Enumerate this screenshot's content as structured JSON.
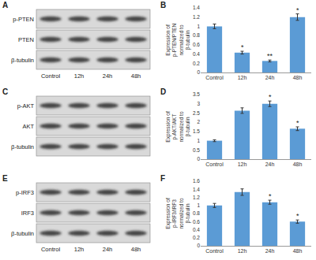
{
  "blots": [
    {
      "panel": "A",
      "rows": [
        "p-PTEN",
        "PTEN",
        "β-tubulin"
      ],
      "lanes": [
        "Control",
        "12h",
        "24h",
        "48h"
      ]
    },
    {
      "panel": "C",
      "rows": [
        "p-AKT",
        "AKT",
        "β-tubulin"
      ]
    },
    {
      "panel": "E",
      "rows": [
        "p-IRF3",
        "IRF3",
        "β-tubulin"
      ],
      "lanes": [
        "Control",
        "12h",
        "24h",
        "48h"
      ]
    }
  ],
  "chart_data": [
    {
      "panel": "B",
      "type": "bar",
      "y_label": "Expression of p-PTEN/PTEN normalized to β-tubulin",
      "categories": [
        "Control",
        "12h",
        "24h",
        "48h"
      ],
      "values": [
        1,
        0.43,
        0.25,
        1.2
      ],
      "errors": [
        0.05,
        0.03,
        0.02,
        0.07
      ],
      "significance": [
        null,
        "*",
        "**",
        "*"
      ],
      "color": "#5b9bd5",
      "ylim": [
        0,
        1.4
      ],
      "yticks": [
        0,
        0.2,
        0.4,
        0.6,
        0.8,
        1,
        1.2,
        1.4
      ],
      "grid": false
    },
    {
      "panel": "D",
      "type": "bar",
      "y_label": "Expression of p-AKT/AKT normalized to β-tubulin",
      "categories": [
        "Control",
        "12h",
        "24h",
        "48h"
      ],
      "values": [
        1,
        2.63,
        3,
        1.65
      ],
      "errors": [
        0.05,
        0.15,
        0.15,
        0.1
      ],
      "significance": [
        null,
        null,
        "*",
        "*"
      ],
      "color": "#5b9bd5",
      "ylim": [
        0,
        3.5
      ],
      "yticks": [
        0,
        0.5,
        1,
        1.5,
        2,
        2.5,
        3,
        3.5
      ],
      "grid": false
    },
    {
      "panel": "F",
      "type": "bar",
      "y_label": "Expression of p-IRF3/IRF3 normalized to β-tubulin",
      "categories": [
        "Control",
        "12h",
        "24h",
        "48h"
      ],
      "values": [
        1,
        1.33,
        1.08,
        0.6
      ],
      "errors": [
        0.05,
        0.08,
        0.05,
        0.04
      ],
      "significance": [
        null,
        null,
        "*",
        "*"
      ],
      "color": "#5b9bd5",
      "ylim": [
        0,
        1.6
      ],
      "yticks": [
        0,
        0.2,
        0.4,
        0.6,
        0.8,
        1,
        1.2,
        1.4,
        1.6
      ],
      "grid": false
    }
  ]
}
